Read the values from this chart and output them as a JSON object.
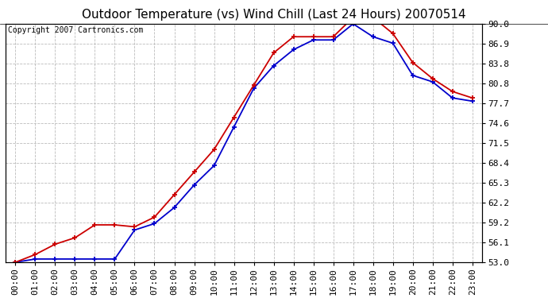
{
  "title": "Outdoor Temperature (vs) Wind Chill (Last 24 Hours) 20070514",
  "copyright_text": "Copyright 2007 Cartronics.com",
  "x_labels": [
    "00:00",
    "01:00",
    "02:00",
    "03:00",
    "04:00",
    "05:00",
    "06:00",
    "07:00",
    "08:00",
    "09:00",
    "10:00",
    "11:00",
    "12:00",
    "13:00",
    "14:00",
    "15:00",
    "16:00",
    "17:00",
    "18:00",
    "19:00",
    "20:00",
    "21:00",
    "22:00",
    "23:00"
  ],
  "y_ticks": [
    53.0,
    56.1,
    59.2,
    62.2,
    65.3,
    68.4,
    71.5,
    74.6,
    77.7,
    80.8,
    83.8,
    86.9,
    90.0
  ],
  "y_min": 53.0,
  "y_max": 90.0,
  "outdoor_temp": [
    53.0,
    54.2,
    55.8,
    56.8,
    58.8,
    58.8,
    58.5,
    60.0,
    63.5,
    67.0,
    70.5,
    75.5,
    80.5,
    85.5,
    88.0,
    88.0,
    88.0,
    91.0,
    91.0,
    88.5,
    84.0,
    81.5,
    79.5,
    78.5
  ],
  "wind_chill": [
    53.0,
    53.5,
    53.5,
    53.5,
    53.5,
    53.5,
    58.0,
    59.0,
    61.5,
    65.0,
    68.0,
    74.0,
    80.0,
    83.5,
    86.0,
    87.5,
    87.5,
    90.0,
    88.0,
    87.0,
    82.0,
    81.0,
    78.5,
    78.0
  ],
  "temp_color": "#cc0000",
  "wind_color": "#0000cc",
  "bg_color": "#ffffff",
  "plot_bg_color": "#ffffff",
  "grid_color": "#bbbbbb",
  "title_fontsize": 11,
  "tick_fontsize": 8,
  "copyright_fontsize": 7
}
